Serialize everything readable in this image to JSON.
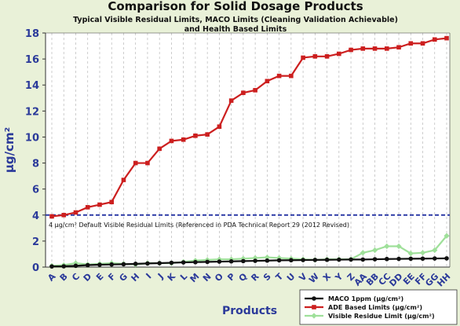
{
  "chart_data": {
    "type": "line",
    "title": "Comparison for Solid Dosage Products",
    "subtitle": [
      "Typical Visible Residual Limits, MACO Limits (Cleaning Validation Achievable)",
      "and Health Based Limits"
    ],
    "xlabel": "Products",
    "ylabel": "µg/cm²",
    "ylim": [
      0,
      18
    ],
    "yticks": [
      0,
      2,
      4,
      6,
      8,
      10,
      12,
      14,
      16,
      18
    ],
    "grid": "vertical-dashed",
    "legend_position": "bottom-right",
    "categories": [
      "A",
      "B",
      "C",
      "D",
      "E",
      "F",
      "G",
      "H",
      "I",
      "J",
      "K",
      "L",
      "M",
      "N",
      "O",
      "P",
      "Q",
      "R",
      "S",
      "T",
      "U",
      "V",
      "W",
      "X",
      "Y",
      "Z",
      "AA",
      "BB",
      "CC",
      "DD",
      "EE",
      "FF",
      "GG",
      "HH"
    ],
    "reference_line": {
      "value": 4,
      "color": "#2c3aa6",
      "label": "4 µg/cm² Default Visible Residual Limits (Referenced in PDA Technical Report 29 (2012 Revised)"
    },
    "series": [
      {
        "name": "MACO 1ppm (µg/cm²)",
        "color": "#111111",
        "marker": "circle",
        "values": [
          0.05,
          0.06,
          0.1,
          0.15,
          0.18,
          0.2,
          0.22,
          0.25,
          0.28,
          0.3,
          0.33,
          0.36,
          0.38,
          0.4,
          0.42,
          0.44,
          0.46,
          0.48,
          0.5,
          0.52,
          0.53,
          0.54,
          0.55,
          0.56,
          0.57,
          0.58,
          0.58,
          0.6,
          0.62,
          0.63,
          0.64,
          0.65,
          0.66,
          0.67
        ]
      },
      {
        "name": "ADE Based Limits (µg/cm²)",
        "color": "#cc1f1f",
        "marker": "square",
        "values": [
          3.9,
          4.0,
          4.2,
          4.6,
          4.8,
          5.0,
          6.7,
          8.0,
          8.0,
          9.1,
          9.7,
          9.8,
          10.1,
          10.2,
          10.8,
          12.8,
          13.4,
          13.6,
          14.3,
          14.7,
          14.7,
          16.1,
          16.2,
          16.2,
          16.4,
          16.7,
          16.8,
          16.8,
          16.8,
          16.9,
          17.2,
          17.2,
          17.5,
          17.6
        ]
      },
      {
        "name": "Visible Residue Limit (µg/cm²)",
        "color": "#9fe09a",
        "marker": "diamond",
        "values": [
          0.1,
          0.15,
          0.3,
          0.2,
          0.25,
          0.3,
          0.25,
          0.2,
          0.3,
          0.3,
          0.3,
          0.4,
          0.5,
          0.55,
          0.6,
          0.6,
          0.65,
          0.7,
          0.75,
          0.7,
          0.65,
          0.6,
          0.55,
          0.6,
          0.6,
          0.6,
          1.1,
          1.3,
          1.6,
          1.6,
          1.05,
          1.1,
          1.3,
          2.4
        ]
      }
    ]
  }
}
